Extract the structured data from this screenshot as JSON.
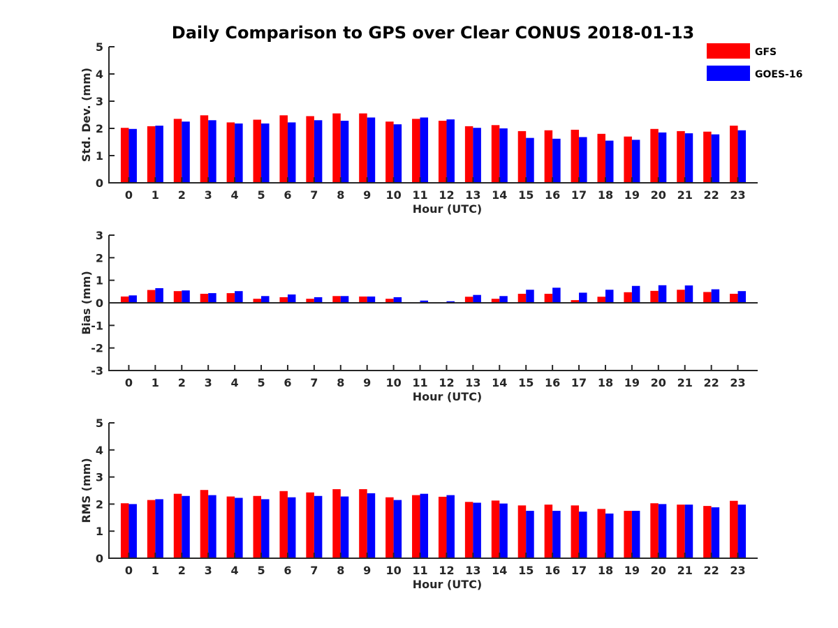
{
  "chart_data": {
    "type": "bar",
    "title": "Daily Comparison to GPS over Clear CONUS 2018-01-13",
    "legend": {
      "placement": "top-right",
      "entries": [
        {
          "name": "GFS",
          "color": "#ff0000"
        },
        {
          "name": "GOES-16",
          "color": "#0000ff"
        }
      ]
    },
    "categories": [
      "0",
      "1",
      "2",
      "3",
      "4",
      "5",
      "6",
      "7",
      "8",
      "9",
      "10",
      "11",
      "12",
      "13",
      "14",
      "15",
      "16",
      "17",
      "18",
      "19",
      "20",
      "21",
      "22",
      "23"
    ],
    "panels": [
      {
        "ylabel": "Std. Dev. (mm)",
        "xlabel": "Hour (UTC)",
        "ylim": [
          0,
          5
        ],
        "yticks": [
          "0",
          "1",
          "2",
          "3",
          "4",
          "5"
        ],
        "series": [
          {
            "name": "GFS",
            "color": "#ff0000",
            "values": [
              2.02,
              2.08,
              2.35,
              2.48,
              2.22,
              2.32,
              2.48,
              2.45,
              2.55,
              2.55,
              2.25,
              2.35,
              2.28,
              2.08,
              2.12,
              1.9,
              1.93,
              1.95,
              1.8,
              1.7,
              1.98,
              1.9,
              1.88,
              2.1
            ]
          },
          {
            "name": "GOES-16",
            "color": "#0000ff",
            "values": [
              1.98,
              2.1,
              2.25,
              2.3,
              2.18,
              2.18,
              2.22,
              2.3,
              2.28,
              2.4,
              2.15,
              2.4,
              2.33,
              2.02,
              2.0,
              1.65,
              1.62,
              1.68,
              1.55,
              1.58,
              1.85,
              1.82,
              1.78,
              1.93
            ]
          }
        ]
      },
      {
        "ylabel": "Bias (mm)",
        "xlabel": "Hour (UTC)",
        "ylim": [
          -3,
          3
        ],
        "yticks": [
          "-3",
          "-2",
          "-1",
          "0",
          "1",
          "2",
          "3"
        ],
        "series": [
          {
            "name": "GFS",
            "color": "#ff0000",
            "values": [
              0.28,
              0.57,
              0.52,
              0.4,
              0.43,
              0.18,
              0.25,
              0.18,
              0.3,
              0.28,
              0.18,
              0.0,
              0.02,
              0.27,
              0.18,
              0.4,
              0.4,
              0.12,
              0.27,
              0.47,
              0.53,
              0.58,
              0.48,
              0.4
            ]
          },
          {
            "name": "GOES-16",
            "color": "#0000ff",
            "values": [
              0.33,
              0.65,
              0.55,
              0.43,
              0.52,
              0.3,
              0.37,
              0.25,
              0.3,
              0.28,
              0.25,
              0.1,
              0.07,
              0.35,
              0.3,
              0.58,
              0.67,
              0.45,
              0.58,
              0.75,
              0.78,
              0.77,
              0.6,
              0.52
            ]
          }
        ]
      },
      {
        "ylabel": "RMS (mm)",
        "xlabel": "Hour (UTC)",
        "ylim": [
          0,
          5
        ],
        "yticks": [
          "0",
          "1",
          "2",
          "3",
          "4",
          "5"
        ],
        "series": [
          {
            "name": "GFS",
            "color": "#ff0000",
            "values": [
              2.03,
              2.15,
              2.38,
              2.52,
              2.28,
              2.3,
              2.48,
              2.43,
              2.55,
              2.55,
              2.25,
              2.33,
              2.27,
              2.08,
              2.13,
              1.95,
              1.98,
              1.95,
              1.82,
              1.75,
              2.03,
              1.98,
              1.93,
              2.12
            ]
          },
          {
            "name": "GOES-16",
            "color": "#0000ff",
            "values": [
              2.0,
              2.18,
              2.3,
              2.33,
              2.23,
              2.18,
              2.25,
              2.3,
              2.28,
              2.4,
              2.15,
              2.38,
              2.33,
              2.05,
              2.02,
              1.75,
              1.75,
              1.72,
              1.65,
              1.75,
              2.0,
              1.98,
              1.88,
              1.98
            ]
          }
        ]
      }
    ]
  }
}
